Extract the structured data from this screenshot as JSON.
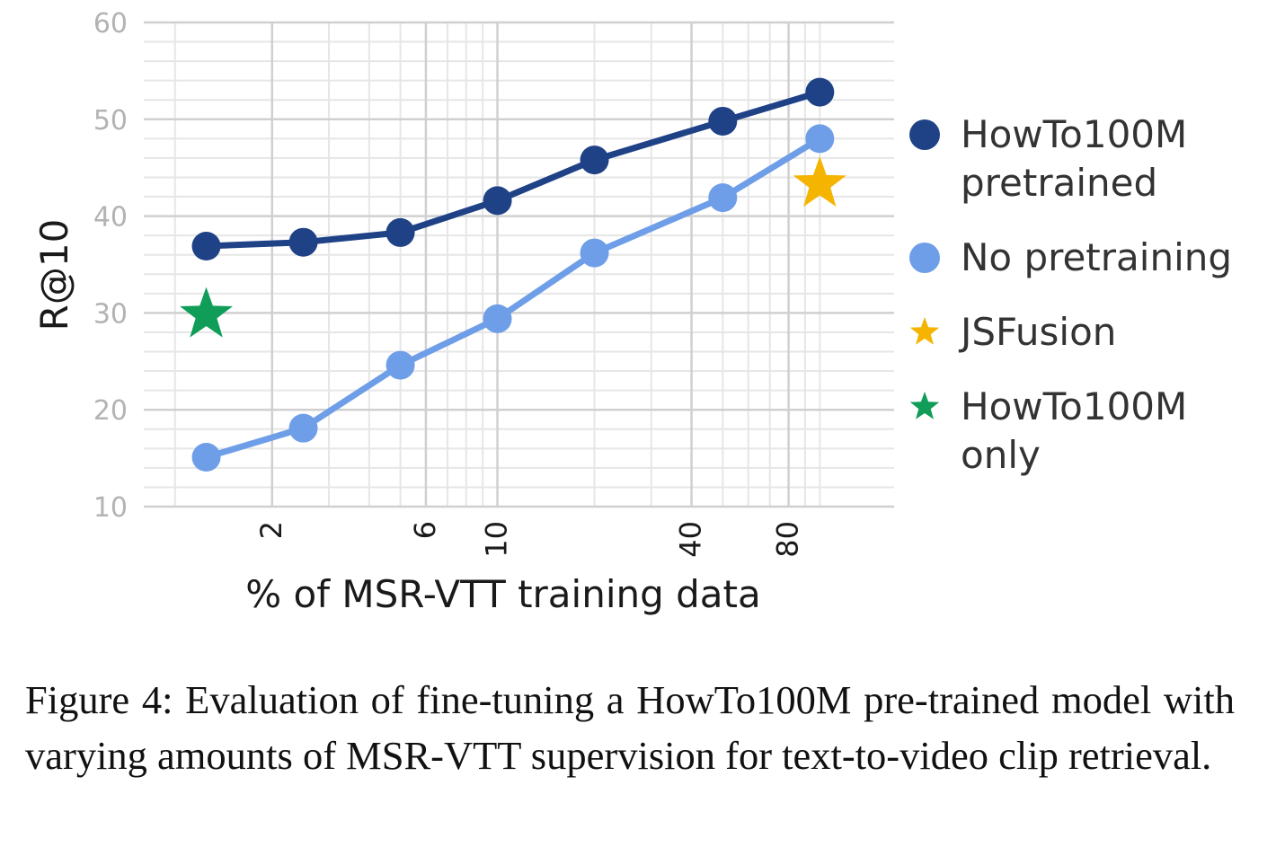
{
  "chart_data": {
    "type": "line",
    "xlabel": "% of MSR-VTT training data",
    "ylabel": "R@10",
    "ylim": [
      10,
      60
    ],
    "yticks": [
      10,
      20,
      30,
      40,
      50,
      60
    ],
    "xscale": "log",
    "xlim": [
      0.8,
      170
    ],
    "xticks": [
      2,
      6,
      10,
      40,
      80
    ],
    "grid": true,
    "legend_position": "right",
    "series": [
      {
        "name": "HowTo100M pretrained",
        "name_lines": [
          "HowTo100M",
          "pretrained"
        ],
        "color": "#1f4286",
        "marker": "circle",
        "x": [
          1.25,
          2.5,
          5,
          10,
          20,
          50,
          100
        ],
        "y": [
          36.9,
          37.3,
          38.3,
          41.6,
          45.8,
          49.8,
          52.8
        ]
      },
      {
        "name": "No pretraining",
        "name_lines": [
          "No pretraining"
        ],
        "color": "#6f9ee8",
        "marker": "circle",
        "x": [
          1.25,
          2.5,
          5,
          10,
          20,
          50,
          100
        ],
        "y": [
          15.1,
          18.1,
          24.6,
          29.4,
          36.2,
          41.9,
          48.0
        ]
      },
      {
        "name": "JSFusion",
        "name_lines": [
          "JSFusion"
        ],
        "color": "#f5b400",
        "marker": "star",
        "x": [
          100
        ],
        "y": [
          43.3
        ]
      },
      {
        "name": "HowTo100M only",
        "name_lines": [
          "HowTo100M",
          "only"
        ],
        "color": "#0f9d58",
        "marker": "star",
        "x": [
          1.25
        ],
        "y": [
          29.8
        ]
      }
    ]
  },
  "caption": "Figure 4:  Evaluation of fine-tuning a HowTo100M pre-trained model with varying amounts of MSR-VTT supervision for text-to-video clip retrieval."
}
